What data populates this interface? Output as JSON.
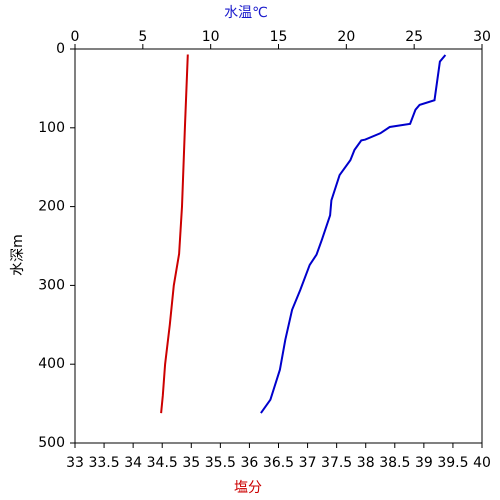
{
  "chart_data": {
    "type": "profile",
    "x_title": "塩分",
    "x2_title": "水温℃",
    "y_title": "水深m",
    "x_title_color": "#cc0000",
    "x2_title_color": "#1a1acc",
    "xlim": [
      33,
      40
    ],
    "xticks": [
      33,
      33.5,
      34,
      34.5,
      35,
      35.5,
      36,
      36.5,
      37,
      37.5,
      38,
      38.5,
      39,
      39.5,
      40
    ],
    "x2lim": [
      0,
      30
    ],
    "x2ticks": [
      0,
      5,
      10,
      15,
      20,
      25,
      30
    ],
    "ylim": [
      0,
      500
    ],
    "yticks": [
      0,
      100,
      200,
      300,
      400,
      500
    ],
    "y_inverted": true,
    "series": [
      {
        "color": "#0000cc",
        "axis": "x2",
        "depth": [
          7.6,
          16,
          65,
          71,
          77,
          95,
          99,
          107,
          115,
          116,
          128,
          141,
          160,
          192,
          211,
          242,
          261,
          274,
          306,
          331,
          369,
          407,
          445,
          462
        ],
        "values": [
          27.3,
          26.9,
          26.5,
          25.4,
          25.1,
          24.7,
          23.2,
          22.5,
          21.4,
          21.1,
          20.6,
          20.3,
          19.5,
          18.9,
          18.8,
          18.2,
          17.8,
          17.3,
          16.6,
          16.0,
          15.5,
          15.1,
          14.4,
          13.7
        ]
      },
      {
        "color": "#cc0000",
        "axis": "x",
        "depth": [
          7,
          100,
          200,
          260,
          300,
          350,
          400,
          440,
          462
        ],
        "values": [
          34.94,
          34.89,
          34.84,
          34.79,
          34.7,
          34.63,
          34.55,
          34.51,
          34.48
        ]
      }
    ]
  }
}
